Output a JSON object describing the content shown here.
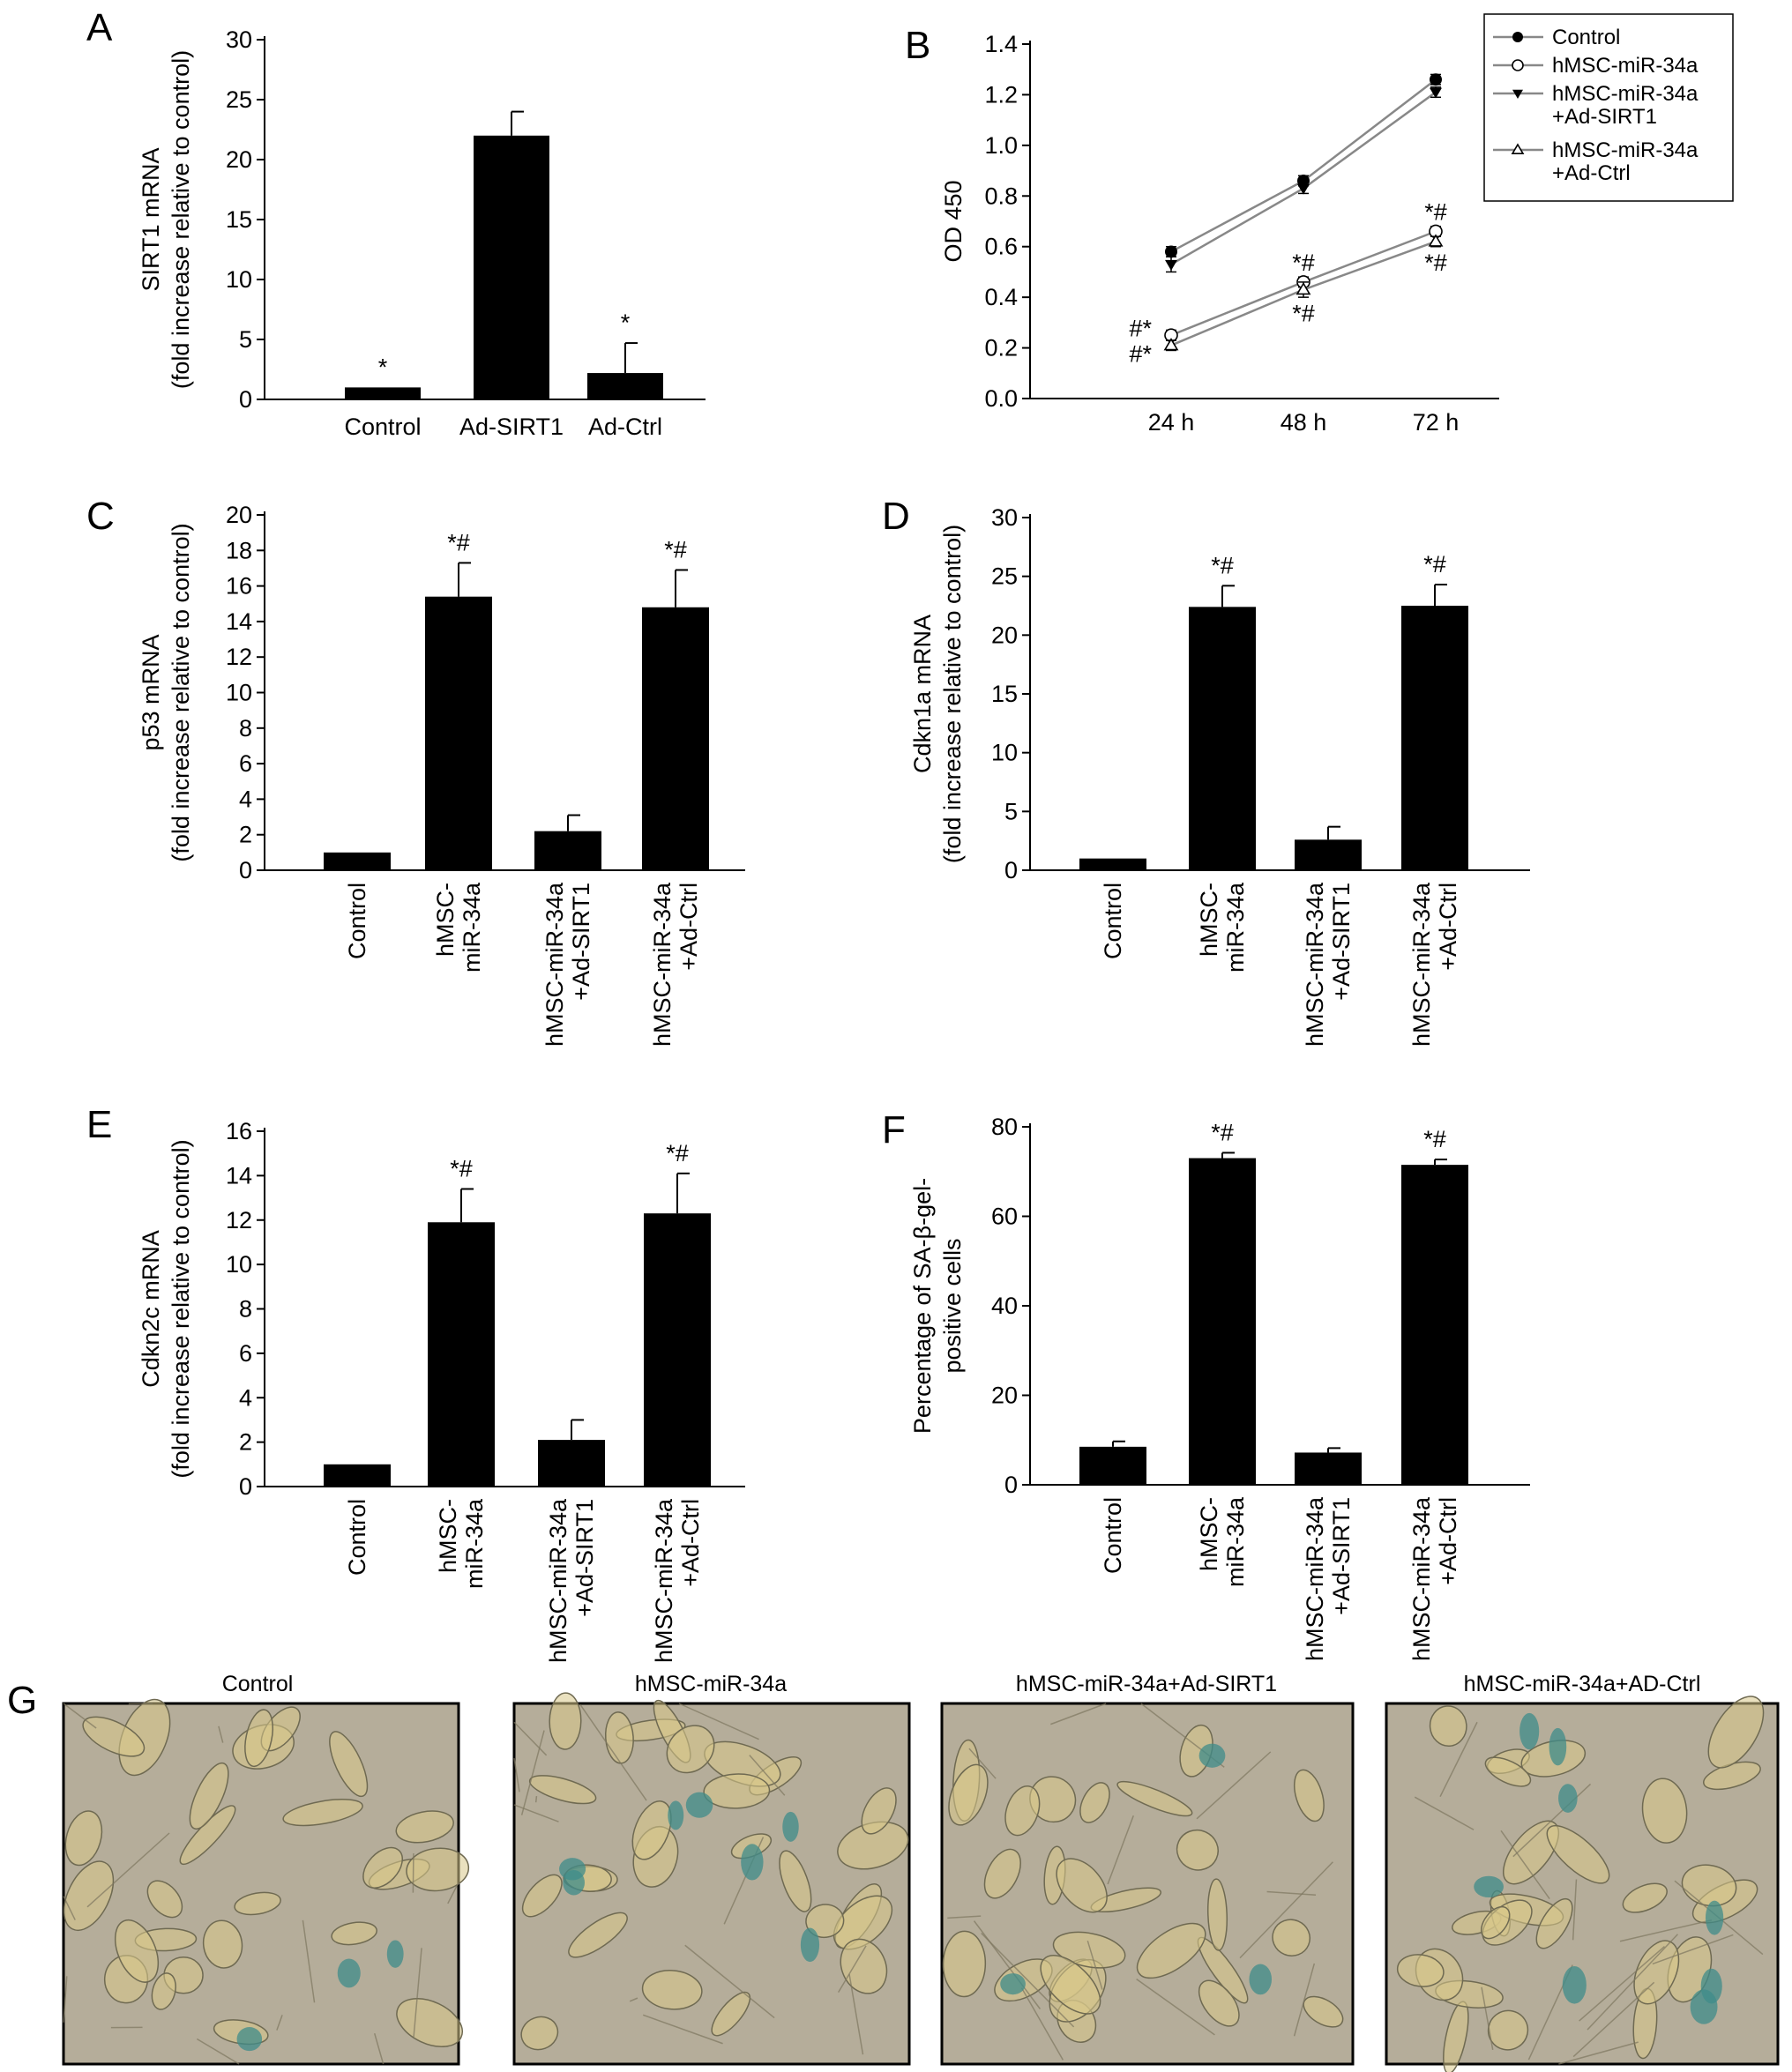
{
  "chart_data": [
    {
      "panel": "A",
      "type": "bar",
      "ylabel": "SIRT1 mRNA\n(fold increase relative to control)",
      "ylim": [
        0,
        30
      ],
      "yticks": [
        0,
        5,
        10,
        15,
        20,
        25,
        30
      ],
      "categories": [
        "Control",
        "Ad-SIRT1",
        "Ad-Ctrl"
      ],
      "values": [
        1.0,
        22.0,
        2.2
      ],
      "errors": [
        0,
        2.0,
        2.5
      ],
      "annotations": [
        "*",
        "",
        "*"
      ]
    },
    {
      "panel": "B",
      "type": "line",
      "ylabel": "OD 450",
      "ylim": [
        0,
        1.4
      ],
      "yticks": [
        0.0,
        0.2,
        0.4,
        0.6,
        0.8,
        1.0,
        1.2,
        1.4
      ],
      "x": [
        "24 h",
        "48 h",
        "72 h"
      ],
      "series": [
        {
          "name": "Control",
          "marker": "filled-circle",
          "values": [
            0.58,
            0.86,
            1.26
          ],
          "errors": [
            0.02,
            0.02,
            0.02
          ]
        },
        {
          "name": "hMSC-miR-34a",
          "marker": "open-circle",
          "values": [
            0.25,
            0.46,
            0.66
          ],
          "errors": [
            0.02,
            0.02,
            0.02
          ]
        },
        {
          "name": "hMSC-miR-34a\n+Ad-SIRT1",
          "marker": "filled-triangle",
          "values": [
            0.53,
            0.83,
            1.21
          ],
          "errors": [
            0.03,
            0.02,
            0.02
          ]
        },
        {
          "name": "hMSC-miR-34a\n+Ad-Ctrl",
          "marker": "open-triangle",
          "values": [
            0.21,
            0.43,
            0.62
          ],
          "errors": [
            0.02,
            0.03,
            0.02
          ]
        }
      ],
      "annotations": [
        {
          "text": "#*",
          "x": "24 h",
          "y": 0.28,
          "side": "left"
        },
        {
          "text": "#*",
          "x": "24 h",
          "y": 0.18,
          "side": "left"
        },
        {
          "text": "*#",
          "x": "48 h",
          "y": 0.54,
          "side": "center"
        },
        {
          "text": "*#",
          "x": "48 h",
          "y": 0.34,
          "side": "center"
        },
        {
          "text": "*#",
          "x": "72 h",
          "y": 0.74,
          "side": "center"
        },
        {
          "text": "*#",
          "x": "72 h",
          "y": 0.54,
          "side": "center"
        }
      ],
      "legend_position": "top-right"
    },
    {
      "panel": "C",
      "type": "bar",
      "ylabel": "p53 mRNA\n(fold increase relative to control)",
      "ylim": [
        0,
        20
      ],
      "yticks": [
        0,
        2,
        4,
        6,
        8,
        10,
        12,
        14,
        16,
        18,
        20
      ],
      "categories": [
        "Control",
        "hMSC-\nmiR-34a",
        "hMSC-miR-34a\n+Ad-SIRT1",
        "hMSC-miR-34a\n+Ad-Ctrl"
      ],
      "values": [
        1.0,
        15.4,
        2.2,
        14.8
      ],
      "errors": [
        0,
        1.9,
        0.9,
        2.1
      ],
      "annotations": [
        "",
        "*#",
        "",
        "*#"
      ]
    },
    {
      "panel": "D",
      "type": "bar",
      "ylabel": "Cdkn1a mRNA\n(fold increase relative to control)",
      "ylim": [
        0,
        30
      ],
      "yticks": [
        0,
        5,
        10,
        15,
        20,
        25,
        30
      ],
      "categories": [
        "Control",
        "hMSC-\nmiR-34a",
        "hMSC-miR-34a\n+Ad-SIRT1",
        "hMSC-miR-34a\n+Ad-Ctrl"
      ],
      "values": [
        1.0,
        22.4,
        2.6,
        22.5
      ],
      "errors": [
        0,
        1.8,
        1.1,
        1.8
      ],
      "annotations": [
        "",
        "*#",
        "",
        "*#"
      ]
    },
    {
      "panel": "E",
      "type": "bar",
      "ylabel": "Cdkn2c mRNA\n(fold increase relative to control)",
      "ylim": [
        0,
        16
      ],
      "yticks": [
        0,
        2,
        4,
        6,
        8,
        10,
        12,
        14,
        16
      ],
      "categories": [
        "Control",
        "hMSC-\nmiR-34a",
        "hMSC-miR-34a\n+Ad-SIRT1",
        "hMSC-miR-34a\n+Ad-Ctrl"
      ],
      "values": [
        1.0,
        11.9,
        2.1,
        12.3
      ],
      "errors": [
        0,
        1.5,
        0.9,
        1.8
      ],
      "annotations": [
        "",
        "*#",
        "",
        "*#"
      ]
    },
    {
      "panel": "F",
      "type": "bar",
      "ylabel": "Percentage of SA-β-gel-\npositive cells",
      "ylim": [
        0,
        80
      ],
      "yticks": [
        0,
        20,
        40,
        60,
        80
      ],
      "categories": [
        "Control",
        "hMSC-\nmiR-34a",
        "hMSC-miR-34a\n+Ad-SIRT1",
        "hMSC-miR-34a\n+Ad-Ctrl"
      ],
      "values": [
        8.5,
        73.0,
        7.2,
        71.5
      ],
      "errors": [
        1.2,
        1.2,
        1.0,
        1.2
      ],
      "annotations": [
        "",
        "*#",
        "",
        "*#"
      ]
    }
  ],
  "photos": {
    "label": "G",
    "titles": [
      "Control",
      "hMSC-miR-34a",
      "hMSC-miR-34a+Ad-SIRT1",
      "hMSC-miR-34a+AD-Ctrl"
    ]
  },
  "colors": {
    "bar": "#000000",
    "axis": "#000000",
    "line": "#888888",
    "photo_bg": "#b5ad9a",
    "cell": "#d8c98a",
    "stain": "#3f8c8a"
  }
}
